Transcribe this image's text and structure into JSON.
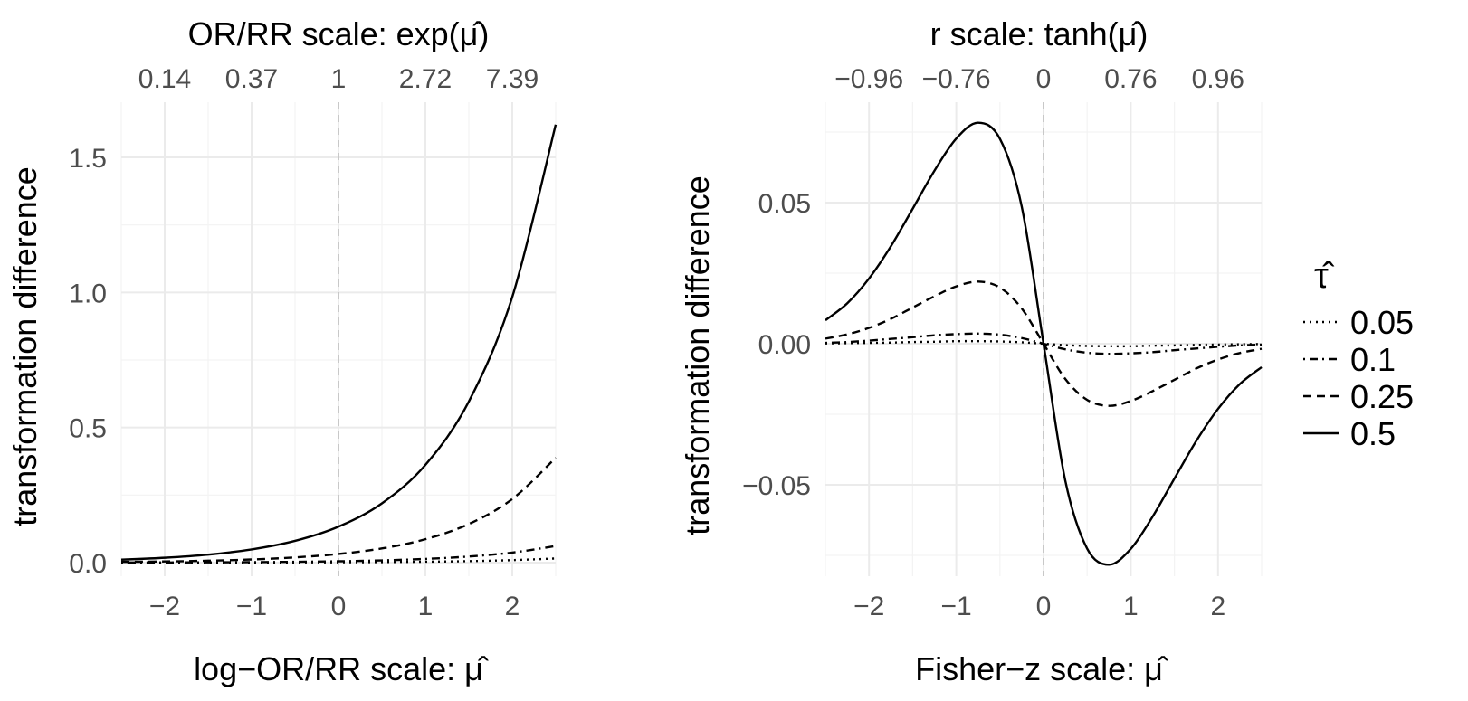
{
  "chart_data": [
    {
      "type": "line",
      "title": "OR/RR scale: exp(μ̂)",
      "top_axis_ticks": [
        "0.14",
        "0.37",
        "1",
        "2.72",
        "7.39"
      ],
      "top_axis_tick_positions": [
        -2,
        -1,
        0,
        1,
        2
      ],
      "xlabel": "log−OR/RR scale: μ̂",
      "ylabel": "transformation difference",
      "xlim": [
        -2.5,
        2.5
      ],
      "ylim": [
        0,
        1.62
      ],
      "x_ticks": [
        -2,
        -1,
        0,
        1,
        2
      ],
      "x_tick_labels": [
        "−2",
        "−1",
        "0",
        "1",
        "2"
      ],
      "y_ticks": [
        0,
        0.5,
        1,
        1.5
      ],
      "y_tick_labels": [
        "0.0",
        "0.5",
        "1.0",
        "1.5"
      ],
      "x": [
        -2.5,
        -2,
        -1.5,
        -1,
        -0.5,
        0,
        0.5,
        1,
        1.5,
        2,
        2.5
      ],
      "series": [
        {
          "name": "0.05",
          "linetype": "dotted",
          "values": [
            0.0001,
            0.0002,
            0.0003,
            0.0005,
            0.0008,
            0.0013,
            0.0021,
            0.0034,
            0.0056,
            0.0093,
            0.0153
          ]
        },
        {
          "name": "0.1",
          "linetype": "dotdash",
          "values": [
            0.0004,
            0.0007,
            0.0011,
            0.0018,
            0.0031,
            0.005,
            0.0083,
            0.0137,
            0.0226,
            0.0372,
            0.0614
          ]
        },
        {
          "name": "0.25",
          "linetype": "dashed",
          "values": [
            0.0026,
            0.0043,
            0.0071,
            0.0117,
            0.0193,
            0.0319,
            0.0525,
            0.0866,
            0.1428,
            0.2354,
            0.3881
          ]
        },
        {
          "name": "0.5",
          "linetype": "solid",
          "values": [
            0.0109,
            0.018,
            0.0296,
            0.0488,
            0.0805,
            0.1331,
            0.2194,
            0.3617,
            0.5963,
            0.9833,
            1.6212
          ]
        }
      ]
    },
    {
      "type": "line",
      "title": "r scale: tanh(μ̂)",
      "top_axis_ticks": [
        "−0.96",
        "−0.76",
        "0",
        "0.76",
        "0.96"
      ],
      "top_axis_tick_positions": [
        -2,
        -1,
        0,
        1,
        2
      ],
      "xlabel": "Fisher−z scale: μ̂",
      "ylabel": "transformation difference",
      "xlim": [
        -2.5,
        2.5
      ],
      "ylim": [
        -0.08,
        0.08
      ],
      "x_ticks": [
        -2,
        -1,
        0,
        1,
        2
      ],
      "x_tick_labels": [
        "−2",
        "−1",
        "0",
        "1",
        "2"
      ],
      "y_ticks": [
        -0.05,
        0,
        0.05
      ],
      "y_tick_labels": [
        "−0.05",
        "0.00",
        "0.05"
      ],
      "x": [
        -2.5,
        -2.25,
        -2,
        -1.75,
        -1.5,
        -1.25,
        -1,
        -0.75,
        -0.5,
        -0.25,
        0,
        0.25,
        0.5,
        0.75,
        1,
        1.25,
        1.5,
        1.75,
        2,
        2.25,
        2.5
      ],
      "series": [
        {
          "name": "0.05",
          "linetype": "dotted",
          "values": [
            0.0001,
            0.0002,
            0.0003,
            0.0004,
            0.0006,
            0.0007,
            0.0009,
            0.0009,
            0.0008,
            0.0005,
            0,
            -0.0005,
            -0.0008,
            -0.0009,
            -0.0009,
            -0.0007,
            -0.0006,
            -0.0004,
            -0.0003,
            -0.0002,
            -0.0001
          ]
        },
        {
          "name": "0.1",
          "linetype": "dotdash",
          "values": [
            0.0003,
            0.0006,
            0.0011,
            0.0017,
            0.0023,
            0.003,
            0.0034,
            0.0036,
            0.0032,
            0.002,
            0,
            -0.002,
            -0.0032,
            -0.0036,
            -0.0034,
            -0.003,
            -0.0023,
            -0.0017,
            -0.0011,
            -0.0006,
            -0.0003
          ]
        },
        {
          "name": "0.25",
          "linetype": "dashed",
          "values": [
            0.0018,
            0.0033,
            0.0056,
            0.0088,
            0.0128,
            0.0168,
            0.0203,
            0.022,
            0.0199,
            0.0125,
            0,
            -0.0125,
            -0.0199,
            -0.022,
            -0.0203,
            -0.0168,
            -0.0128,
            -0.0088,
            -0.0056,
            -0.0033,
            -0.0018
          ]
        },
        {
          "name": "0.5",
          "linetype": "solid",
          "values": [
            0.0083,
            0.0143,
            0.0231,
            0.0345,
            0.0478,
            0.0613,
            0.0727,
            0.0783,
            0.0726,
            0.0486,
            0,
            -0.0486,
            -0.0726,
            -0.0783,
            -0.0727,
            -0.0613,
            -0.0478,
            -0.0345,
            -0.0231,
            -0.0143,
            -0.0083
          ]
        }
      ]
    }
  ],
  "legend": {
    "title": "τ̂",
    "items": [
      {
        "label": "0.05",
        "linetype": "dotted"
      },
      {
        "label": "0.1",
        "linetype": "dotdash"
      },
      {
        "label": "0.25",
        "linetype": "dashed"
      },
      {
        "label": "0.5",
        "linetype": "solid"
      }
    ]
  }
}
